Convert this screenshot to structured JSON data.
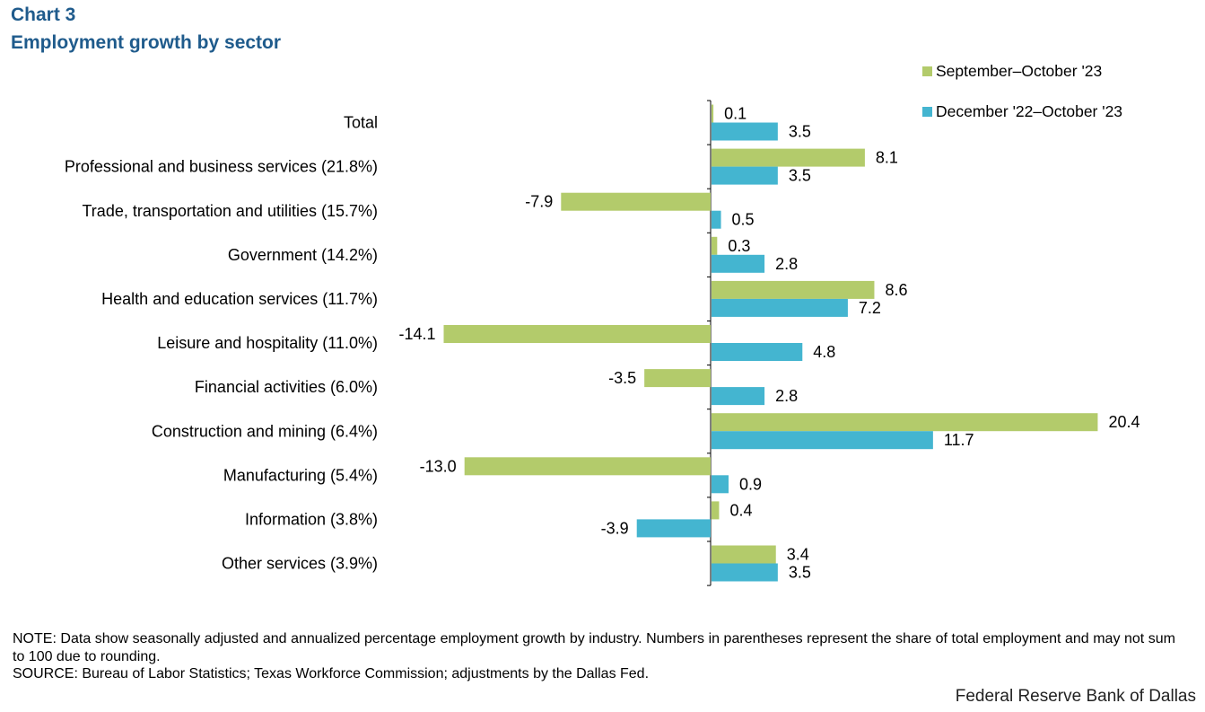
{
  "header": {
    "chart_number": "Chart 3",
    "title": "Employment  growth by sector"
  },
  "colors": {
    "series1": "#b3cb6b",
    "series2": "#44b5d0",
    "title": "#1f5b8c"
  },
  "chart_data": {
    "type": "bar",
    "orientation": "horizontal",
    "title": "Employment growth by sector",
    "categories": [
      "Total",
      "Professional and business services (21.8%)",
      "Trade, transportation and utilities (15.7%)",
      "Government (14.2%)",
      "Health and education services (11.7%)",
      "Leisure and hospitality  (11.0%)",
      "Financial activities (6.0%)",
      "Construction and mining (6.4%)",
      "Manufacturing (5.4%)",
      "Information (3.8%)",
      "Other services (3.9%)"
    ],
    "series": [
      {
        "name": "September–October '23",
        "values": [
          0.1,
          8.1,
          -7.9,
          0.3,
          8.6,
          -14.1,
          -3.5,
          20.4,
          -13.0,
          0.4,
          3.4
        ],
        "labels": [
          "0.1",
          "8.1",
          "-7.9",
          "0.3",
          "8.6",
          "-14.1",
          "-3.5",
          "20.4",
          "-13.0",
          "0.4",
          "3.4"
        ]
      },
      {
        "name": "December '22–October '23",
        "values": [
          3.5,
          3.5,
          0.5,
          2.8,
          7.2,
          4.8,
          2.8,
          11.7,
          0.9,
          -3.9,
          3.5
        ],
        "labels": [
          "3.5",
          "3.5",
          "0.5",
          "2.8",
          "7.2",
          "4.8",
          "2.8",
          "11.7",
          "0.9",
          "-3.9",
          "3.5"
        ]
      }
    ],
    "xlim": [
      -14.1,
      20.4
    ],
    "legend": "top-right",
    "grid": false
  },
  "notes": {
    "note": "NOTE: Data show seasonally adjusted and annualized  percentage employment growth by industry. Numbers in parentheses represent the share of total employment and may not sum to 100 due to rounding.",
    "source": "SOURCE: Bureau of Labor Statistics; Texas Workforce Commission; adjustments by the Dallas Fed."
  },
  "footer": {
    "credit": "Federal Reserve Bank of Dallas"
  }
}
